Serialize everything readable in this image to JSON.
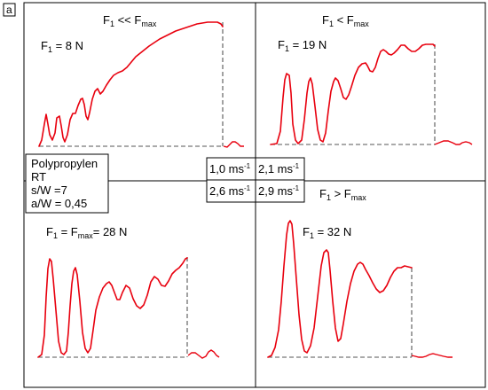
{
  "figure": {
    "panel_tag": "a",
    "material_box": {
      "lines": [
        "Polypropylen",
        "RT",
        "s/W =7",
        "a/W = 0,45"
      ]
    }
  },
  "quadrants": [
    {
      "condition": {
        "pre": "F",
        "sub": "1",
        "mid": " << F",
        "sub2": "max"
      },
      "force": {
        "pre": "F",
        "sub": "1",
        "rest": " = 8 N"
      },
      "velocity": {
        "value": "1,0 ms",
        "exp": "-1"
      }
    },
    {
      "condition": {
        "pre": "F",
        "sub": "1",
        "mid": " < F",
        "sub2": "max"
      },
      "force": {
        "pre": "F",
        "sub": "1",
        "rest": " = 19 N"
      },
      "velocity": {
        "value": "2,1 ms",
        "exp": "-1"
      }
    },
    {
      "condition": {
        "pre": "",
        "sub": "",
        "mid": "",
        "sub2": ""
      },
      "force": {
        "pre": "F",
        "sub": "1",
        "mid": " = F",
        "sub2": "max",
        "rest": "= 28 N"
      },
      "velocity": {
        "value": "2,6 ms",
        "exp": "-1"
      }
    },
    {
      "condition": {
        "pre": "F",
        "sub": "1",
        "mid": " > F",
        "sub2": "max"
      },
      "force": {
        "pre": "F",
        "sub": "1",
        "rest": " = 32 N"
      },
      "velocity": {
        "value": "2,9 ms",
        "exp": "-1"
      }
    }
  ],
  "colors": {
    "curve": "#e8000e",
    "frame": "#000000",
    "dash": "#555555",
    "background": "#ffffff"
  }
}
